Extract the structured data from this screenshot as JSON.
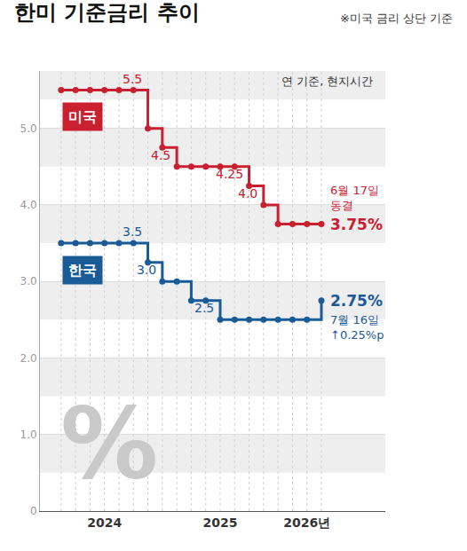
{
  "chart_data": {
    "type": "line",
    "title": "한미 기준금리 추이",
    "subtitle": "※미국 금리 상단 기준",
    "note": "연 기준, 현지시간",
    "decoration": "%",
    "categories": [
      null,
      null,
      null,
      "2024",
      null,
      null,
      null,
      null,
      null,
      null,
      null,
      "2025",
      null,
      null,
      null,
      null,
      null,
      "2026년",
      null
    ],
    "series": [
      {
        "name": "미국",
        "color": "#c8202f",
        "line_style": "step",
        "marker": "circle",
        "values": [
          5.5,
          5.5,
          5.5,
          5.5,
          5.5,
          5.5,
          5.0,
          4.75,
          4.5,
          4.5,
          4.5,
          4.5,
          4.5,
          4.25,
          4.0,
          3.75,
          3.75,
          3.75,
          3.75
        ]
      },
      {
        "name": "한국",
        "color": "#1a5a96",
        "line_style": "step",
        "marker": "circle",
        "values": [
          3.5,
          3.5,
          3.5,
          3.5,
          3.5,
          3.5,
          3.25,
          3.0,
          3.0,
          2.75,
          2.75,
          2.5,
          2.5,
          2.5,
          2.5,
          2.5,
          2.5,
          2.5,
          2.75
        ]
      }
    ],
    "ylim": [
      0,
      5.75
    ],
    "yticks": [
      0,
      {
        "value": 1,
        "label": "1.0"
      },
      {
        "value": 2,
        "label": "2.0"
      },
      {
        "value": 3,
        "label": "3.0"
      },
      {
        "value": 4,
        "label": "4.0"
      },
      {
        "value": 5,
        "label": "5.0"
      }
    ],
    "grid": true,
    "annotations": [
      {
        "series": "미국",
        "text": "5.5",
        "x": 6,
        "y": 5.5
      },
      {
        "series": "미국",
        "text": "4.5",
        "x": 8,
        "y": 4.5
      },
      {
        "series": "미국",
        "text": "4.25",
        "x": 13,
        "y": 4.25
      },
      {
        "series": "미국",
        "text": "4.0",
        "x": 14,
        "y": 4.0
      },
      {
        "series": "한국",
        "text": "3.5",
        "x": 6,
        "y": 3.5
      },
      {
        "series": "한국",
        "text": "3.0",
        "x": 7,
        "y": 3.0
      },
      {
        "series": "한국",
        "text": "2.5",
        "x": 11,
        "y": 2.5
      }
    ],
    "end_labels": [
      {
        "series": "미국",
        "text": "3.75%",
        "note": "6월 17일\n동결"
      },
      {
        "series": "한국",
        "text": "2.75%",
        "note": "7월 16일\n↑0.25%p"
      }
    ]
  }
}
